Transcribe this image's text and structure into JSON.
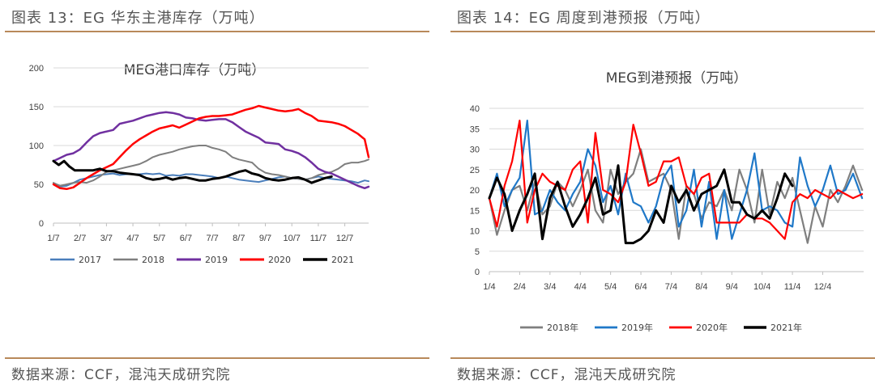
{
  "left": {
    "figure_title": "图表 13：EG 华东主港库存（万吨）",
    "source": "数据来源：CCF，混沌天成研究院"
  },
  "right": {
    "figure_title": "图表 14：EG 周度到港预报（万吨）",
    "source": "数据来源：CCF，混沌天成研究院"
  },
  "colors": {
    "2017": "#4a7ebb",
    "2018": "#7f7f7f",
    "2019": "#7030a0",
    "2020": "#ff0000",
    "2021": "#000000",
    "2018年": "#7f7f7f",
    "2019年": "#1f78c8",
    "2020年": "#ff0000",
    "2021年": "#000000",
    "grid": "#d9d9d9",
    "rule": "#b8895a"
  },
  "chart_data": [
    {
      "type": "line",
      "title": "MEG港口库存（万吨）",
      "xlabel": "",
      "ylabel": "",
      "ylim": [
        0,
        200
      ],
      "yticks": [
        0,
        50,
        100,
        150,
        200
      ],
      "xlim": [
        0,
        11.9
      ],
      "xticks": [
        0,
        1,
        2,
        3,
        4,
        5,
        6,
        7,
        8,
        9,
        10,
        11
      ],
      "xticklabels": [
        "1/7",
        "2/7",
        "3/7",
        "4/7",
        "5/7",
        "6/7",
        "7/7",
        "8/7",
        "9/7",
        "10/7",
        "11/7",
        "12/7"
      ],
      "grid": "horizontal",
      "legend": "bottom",
      "series": [
        {
          "name": "2017",
          "x": [
            0,
            0.25,
            0.5,
            0.75,
            1,
            1.25,
            1.5,
            1.75,
            2,
            2.25,
            2.5,
            2.75,
            3,
            3.25,
            3.5,
            3.75,
            4,
            4.25,
            4.5,
            4.75,
            5,
            5.25,
            5.5,
            5.75,
            6,
            6.25,
            6.5,
            6.75,
            7,
            7.25,
            7.5,
            7.75,
            8,
            8.25,
            8.5,
            8.75,
            9,
            9.25,
            9.5,
            9.75,
            10,
            10.25,
            10.5,
            10.75,
            11,
            11.25,
            11.5,
            11.75,
            11.9
          ],
          "y": [
            50,
            47,
            48,
            52,
            56,
            58,
            60,
            62,
            63,
            64,
            62,
            63,
            63,
            63,
            64,
            63,
            64,
            61,
            62,
            61,
            63,
            63,
            62,
            61,
            60,
            58,
            60,
            58,
            56,
            55,
            54,
            53,
            55,
            57,
            59,
            60,
            58,
            57,
            56,
            58,
            60,
            58,
            57,
            56,
            55,
            54,
            52,
            55,
            54
          ]
        },
        {
          "name": "2018",
          "x": [
            0,
            0.25,
            0.5,
            0.75,
            1,
            1.25,
            1.5,
            1.75,
            2,
            2.25,
            2.5,
            2.75,
            3,
            3.25,
            3.5,
            3.75,
            4,
            4.25,
            4.5,
            4.75,
            5,
            5.25,
            5.5,
            5.75,
            6,
            6.25,
            6.5,
            6.75,
            7,
            7.25,
            7.5,
            7.75,
            8,
            8.25,
            8.5,
            8.75,
            9,
            9.25,
            9.5,
            9.75,
            10,
            10.25,
            10.5,
            10.75,
            11,
            11.25,
            11.5,
            11.75,
            11.9
          ],
          "y": [
            52,
            48,
            50,
            52,
            53,
            52,
            55,
            60,
            66,
            68,
            70,
            72,
            74,
            76,
            80,
            85,
            88,
            90,
            92,
            95,
            97,
            99,
            100,
            100,
            97,
            95,
            92,
            85,
            82,
            80,
            78,
            70,
            65,
            63,
            62,
            60,
            58,
            57,
            56,
            58,
            62,
            64,
            66,
            70,
            76,
            78,
            78,
            80,
            82
          ]
        },
        {
          "name": "2019",
          "x": [
            0,
            0.25,
            0.5,
            0.75,
            1,
            1.25,
            1.5,
            1.75,
            2,
            2.25,
            2.5,
            2.75,
            3,
            3.25,
            3.5,
            3.75,
            4,
            4.25,
            4.5,
            4.75,
            5,
            5.25,
            5.5,
            5.75,
            6,
            6.25,
            6.5,
            6.75,
            7,
            7.25,
            7.5,
            7.75,
            8,
            8.25,
            8.5,
            8.75,
            9,
            9.25,
            9.5,
            9.75,
            10,
            10.25,
            10.5,
            10.75,
            11,
            11.25,
            11.5,
            11.75,
            11.9
          ],
          "y": [
            80,
            84,
            88,
            90,
            95,
            104,
            112,
            116,
            118,
            120,
            128,
            130,
            132,
            135,
            138,
            140,
            142,
            143,
            142,
            140,
            136,
            135,
            133,
            132,
            133,
            134,
            134,
            130,
            124,
            118,
            114,
            110,
            104,
            103,
            102,
            95,
            93,
            90,
            85,
            78,
            70,
            66,
            64,
            60,
            56,
            52,
            48,
            45,
            47
          ]
        },
        {
          "name": "2020",
          "x": [
            0,
            0.25,
            0.5,
            0.75,
            1,
            1.25,
            1.5,
            1.75,
            2,
            2.25,
            2.5,
            2.75,
            3,
            3.25,
            3.5,
            3.75,
            4,
            4.25,
            4.5,
            4.75,
            5,
            5.25,
            5.5,
            5.75,
            6,
            6.25,
            6.5,
            6.75,
            7,
            7.25,
            7.5,
            7.75,
            8,
            8.25,
            8.5,
            8.75,
            9,
            9.25,
            9.5,
            9.75,
            10,
            10.25,
            10.5,
            10.75,
            11,
            11.25,
            11.5,
            11.75,
            11.9
          ],
          "y": [
            50,
            45,
            44,
            46,
            52,
            58,
            63,
            68,
            72,
            76,
            85,
            94,
            102,
            108,
            113,
            118,
            122,
            124,
            126,
            123,
            127,
            131,
            135,
            137,
            138,
            138,
            139,
            140,
            143,
            146,
            148,
            151,
            149,
            147,
            145,
            144,
            145,
            147,
            142,
            138,
            132,
            131,
            130,
            128,
            125,
            120,
            115,
            108,
            85
          ]
        },
        {
          "name": "2021",
          "x": [
            0,
            0.2,
            0.4,
            0.6,
            0.8,
            1,
            1.25,
            1.5,
            1.75,
            2,
            2.25,
            2.5,
            2.75,
            3,
            3.25,
            3.5,
            3.75,
            4,
            4.25,
            4.5,
            4.75,
            5,
            5.25,
            5.5,
            5.75,
            6,
            6.25,
            6.5,
            6.75,
            7,
            7.25,
            7.5,
            7.75,
            8,
            8.25,
            8.5,
            8.75,
            9,
            9.25,
            9.5,
            9.75,
            10,
            10.25,
            10.5
          ],
          "y": [
            80,
            75,
            80,
            73,
            68,
            68,
            68,
            68,
            70,
            67,
            67,
            65,
            64,
            63,
            62,
            58,
            56,
            57,
            59,
            56,
            58,
            59,
            57,
            55,
            55,
            57,
            58,
            60,
            63,
            66,
            68,
            64,
            62,
            58,
            56,
            55,
            56,
            58,
            59,
            56,
            52,
            55,
            58,
            60
          ]
        }
      ]
    },
    {
      "type": "line",
      "title": "MEG到港预报（万吨）",
      "xlabel": "",
      "ylabel": "",
      "ylim": [
        0,
        40
      ],
      "yticks": [
        0,
        5,
        10,
        15,
        20,
        25,
        30,
        35,
        40
      ],
      "xlim": [
        0,
        12.35
      ],
      "xticks": [
        0,
        1,
        2,
        3,
        4,
        5,
        6,
        7,
        8,
        9,
        10,
        11
      ],
      "xticklabels": [
        "1/4",
        "2/4",
        "3/4",
        "4/4",
        "5/4",
        "6/4",
        "7/4",
        "8/4",
        "9/4",
        "10/4",
        "11/4",
        "12/4"
      ],
      "grid": "horizontal",
      "legend": "bottom",
      "series": [
        {
          "name": "2018年",
          "x": [
            0,
            0.25,
            0.5,
            0.75,
            1,
            1.25,
            1.5,
            1.75,
            2,
            2.25,
            2.5,
            2.75,
            3,
            3.25,
            3.5,
            3.75,
            4,
            4.25,
            4.5,
            4.75,
            5,
            5.25,
            5.5,
            5.75,
            6,
            6.25,
            6.5,
            6.75,
            7,
            7.25,
            7.5,
            7.75,
            8,
            8.25,
            8.5,
            8.75,
            9,
            9.25,
            9.5,
            9.75,
            10,
            10.25,
            10.5,
            10.75,
            11,
            11.25,
            11.5,
            11.75,
            12,
            12.3
          ],
          "y": [
            18,
            9,
            15,
            20,
            21,
            15,
            22,
            14,
            16,
            22,
            20,
            16,
            20,
            25,
            15,
            12,
            25,
            19,
            22,
            24,
            30,
            22,
            23,
            24,
            20,
            8,
            21,
            19,
            13,
            17,
            16,
            20,
            15,
            25,
            20,
            12,
            25,
            14,
            22,
            18,
            23,
            15,
            7,
            16,
            11,
            20,
            17,
            21,
            26,
            20
          ]
        },
        {
          "name": "2019年",
          "x": [
            0,
            0.25,
            0.5,
            0.75,
            1,
            1.25,
            1.5,
            1.75,
            2,
            2.25,
            2.5,
            2.75,
            3,
            3.25,
            3.5,
            3.75,
            4,
            4.25,
            4.5,
            4.75,
            5,
            5.25,
            5.5,
            5.75,
            6,
            6.25,
            6.5,
            6.75,
            7,
            7.25,
            7.5,
            7.75,
            8,
            8.25,
            8.5,
            8.75,
            9,
            9.25,
            9.5,
            9.75,
            10,
            10.25,
            10.5,
            10.75,
            11,
            11.25,
            11.5,
            11.75,
            12,
            12.3
          ],
          "y": [
            18,
            24,
            16,
            20,
            23,
            37,
            14,
            15,
            20,
            17,
            15,
            19,
            22,
            30,
            26,
            17,
            21,
            14,
            24,
            17,
            16,
            12,
            16,
            23,
            26,
            11,
            15,
            25,
            11,
            22,
            8,
            20,
            8,
            14,
            20,
            29,
            15,
            16,
            15,
            12,
            11,
            28,
            21,
            16,
            20,
            26,
            19,
            20,
            24,
            18
          ]
        },
        {
          "name": "2020年",
          "x": [
            0,
            0.25,
            0.5,
            0.75,
            1,
            1.25,
            1.5,
            1.75,
            2,
            2.25,
            2.5,
            2.75,
            3,
            3.25,
            3.5,
            3.75,
            4,
            4.25,
            4.5,
            4.75,
            5,
            5.25,
            5.5,
            5.75,
            6,
            6.25,
            6.5,
            6.75,
            7,
            7.25,
            7.5,
            7.75,
            8,
            8.25,
            8.5,
            8.75,
            9,
            9.25,
            9.5,
            9.75,
            10,
            10.25,
            10.5,
            10.75,
            11,
            11.25,
            11.5,
            11.75,
            12,
            12.3
          ],
          "y": [
            18,
            11,
            21,
            27,
            37,
            12,
            20,
            24,
            22,
            21,
            20,
            25,
            27,
            12,
            34,
            20,
            19,
            17,
            22,
            36,
            29,
            21,
            22,
            27,
            27,
            28,
            21,
            19,
            23,
            24,
            12,
            12,
            12,
            12,
            14,
            13,
            13,
            12,
            10,
            8,
            17,
            19,
            18,
            20,
            19,
            18,
            20,
            19,
            18,
            19
          ]
        },
        {
          "name": "2021年",
          "x": [
            0,
            0.25,
            0.5,
            0.75,
            1,
            1.25,
            1.5,
            1.75,
            2,
            2.25,
            2.5,
            2.75,
            3,
            3.25,
            3.5,
            3.75,
            4,
            4.25,
            4.5,
            4.75,
            5,
            5.25,
            5.5,
            5.75,
            6,
            6.25,
            6.5,
            6.75,
            7,
            7.25,
            7.5,
            7.75,
            8,
            8.25,
            8.5,
            8.75,
            9,
            9.25,
            9.5,
            9.75,
            10
          ],
          "y": [
            18,
            23,
            19,
            10,
            15,
            19,
            24,
            8,
            18,
            22,
            16,
            11,
            14,
            18,
            23,
            14,
            15,
            26,
            7,
            7,
            8,
            10,
            15,
            12,
            21,
            17,
            20,
            15,
            19,
            20,
            21,
            25,
            17,
            17,
            14,
            13,
            15,
            13,
            18,
            24,
            21
          ]
        }
      ]
    }
  ]
}
